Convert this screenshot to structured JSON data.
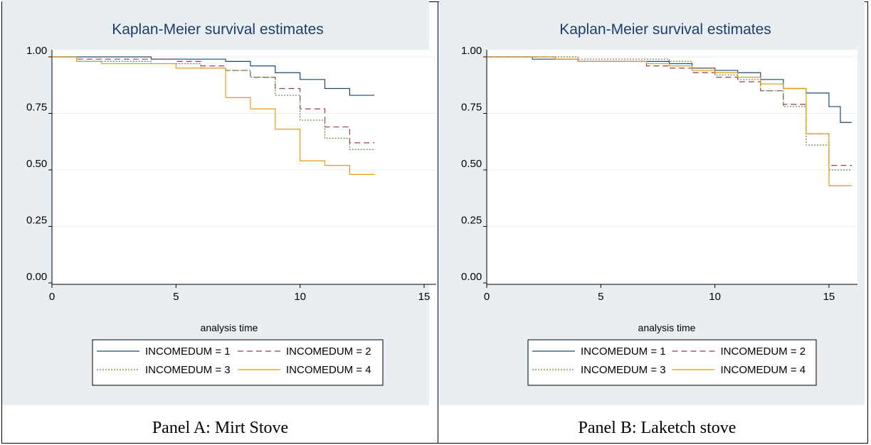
{
  "captions": [
    "Panel A: Mirt Stove",
    "Panel B: Laketch stove"
  ],
  "colors": {
    "background": "#e8eef2",
    "plot": "#ffffff",
    "title": "#1f3d6b",
    "grid": "#e8eef2"
  },
  "chart_data": [
    {
      "type": "line",
      "title": "Kaplan-Meier survival estimates",
      "xlabel": "analysis time",
      "ylabel": "",
      "xlim": [
        0,
        15
      ],
      "ylim": [
        0,
        1
      ],
      "x_ticks": [
        0,
        5,
        10,
        15
      ],
      "y_ticks": [
        0.0,
        0.25,
        0.5,
        0.75,
        1.0
      ],
      "y_tick_labels": [
        "0.00",
        "0.25",
        "0.50",
        "0.75",
        "1.00"
      ],
      "grid": true,
      "legend_position": "bottom",
      "legend_columns": 2,
      "series": [
        {
          "name": "INCOMEDUM = 1",
          "color": "#1a4a7a",
          "dash": "",
          "points": [
            [
              0,
              1.0
            ],
            [
              4,
              0.99
            ],
            [
              7,
              0.98
            ],
            [
              8,
              0.96
            ],
            [
              9,
              0.93
            ],
            [
              10,
              0.9
            ],
            [
              11,
              0.86
            ],
            [
              12,
              0.83
            ],
            [
              13,
              0.83
            ]
          ]
        },
        {
          "name": "INCOMEDUM = 2",
          "color": "#9c3a55",
          "dash": "8,5",
          "points": [
            [
              0,
              1.0
            ],
            [
              1,
              0.99
            ],
            [
              5,
              0.98
            ],
            [
              6,
              0.96
            ],
            [
              7,
              0.94
            ],
            [
              8,
              0.91
            ],
            [
              9,
              0.86
            ],
            [
              10,
              0.77
            ],
            [
              11,
              0.69
            ],
            [
              12,
              0.62
            ],
            [
              13,
              0.62
            ]
          ]
        },
        {
          "name": "INCOMEDUM = 3",
          "color": "#5a8a3a",
          "dash": "2,2",
          "points": [
            [
              0,
              1.0
            ],
            [
              1,
              0.98
            ],
            [
              4,
              0.97
            ],
            [
              6,
              0.95
            ],
            [
              7,
              0.94
            ],
            [
              8,
              0.91
            ],
            [
              9,
              0.83
            ],
            [
              10,
              0.72
            ],
            [
              11,
              0.64
            ],
            [
              12,
              0.59
            ],
            [
              13,
              0.59
            ]
          ]
        },
        {
          "name": "INCOMEDUM = 4",
          "color": "#e89a1a",
          "dash": "",
          "points": [
            [
              0,
              1.0
            ],
            [
              1,
              0.98
            ],
            [
              2,
              0.97
            ],
            [
              5,
              0.95
            ],
            [
              7,
              0.82
            ],
            [
              8,
              0.77
            ],
            [
              9,
              0.68
            ],
            [
              10,
              0.54
            ],
            [
              11,
              0.52
            ],
            [
              12,
              0.48
            ],
            [
              13,
              0.48
            ]
          ]
        }
      ]
    },
    {
      "type": "line",
      "title": "Kaplan-Meier survival estimates",
      "xlabel": "analysis time",
      "ylabel": "",
      "xlim": [
        0,
        16
      ],
      "ylim": [
        0,
        1
      ],
      "x_ticks": [
        0,
        5,
        10,
        15
      ],
      "y_ticks": [
        0.0,
        0.25,
        0.5,
        0.75,
        1.0
      ],
      "y_tick_labels": [
        "0.00",
        "0.25",
        "0.50",
        "0.75",
        "1.00"
      ],
      "grid": true,
      "legend_position": "bottom",
      "legend_columns": 2,
      "series": [
        {
          "name": "INCOMEDUM = 1",
          "color": "#1a4a7a",
          "dash": "",
          "points": [
            [
              0,
              1.0
            ],
            [
              2,
              0.99
            ],
            [
              4,
              0.98
            ],
            [
              8,
              0.97
            ],
            [
              9,
              0.95
            ],
            [
              10,
              0.94
            ],
            [
              11,
              0.93
            ],
            [
              12,
              0.9
            ],
            [
              13,
              0.86
            ],
            [
              14,
              0.84
            ],
            [
              15,
              0.78
            ],
            [
              15.5,
              0.71
            ],
            [
              16,
              0.71
            ]
          ]
        },
        {
          "name": "INCOMEDUM = 2",
          "color": "#9c3a55",
          "dash": "8,5",
          "points": [
            [
              0,
              1.0
            ],
            [
              3,
              0.99
            ],
            [
              4,
              0.98
            ],
            [
              7,
              0.96
            ],
            [
              8,
              0.95
            ],
            [
              9,
              0.93
            ],
            [
              10,
              0.91
            ],
            [
              11,
              0.89
            ],
            [
              12,
              0.85
            ],
            [
              13,
              0.79
            ],
            [
              14,
              0.66
            ],
            [
              15,
              0.52
            ],
            [
              16,
              0.52
            ]
          ]
        },
        {
          "name": "INCOMEDUM = 3",
          "color": "#5a8a3a",
          "dash": "2,2",
          "points": [
            [
              0,
              1.0
            ],
            [
              4,
              0.99
            ],
            [
              8,
              0.98
            ],
            [
              9,
              0.95
            ],
            [
              10,
              0.92
            ],
            [
              11,
              0.9
            ],
            [
              12,
              0.85
            ],
            [
              13,
              0.78
            ],
            [
              14,
              0.61
            ],
            [
              15,
              0.5
            ],
            [
              16,
              0.5
            ]
          ]
        },
        {
          "name": "INCOMEDUM = 4",
          "color": "#e89a1a",
          "dash": "",
          "points": [
            [
              0,
              1.0
            ],
            [
              3,
              0.99
            ],
            [
              4,
              0.98
            ],
            [
              7,
              0.97
            ],
            [
              8,
              0.96
            ],
            [
              9,
              0.94
            ],
            [
              10,
              0.93
            ],
            [
              11,
              0.91
            ],
            [
              12,
              0.88
            ],
            [
              13,
              0.86
            ],
            [
              14,
              0.66
            ],
            [
              15,
              0.43
            ],
            [
              16,
              0.43
            ]
          ]
        }
      ]
    }
  ]
}
